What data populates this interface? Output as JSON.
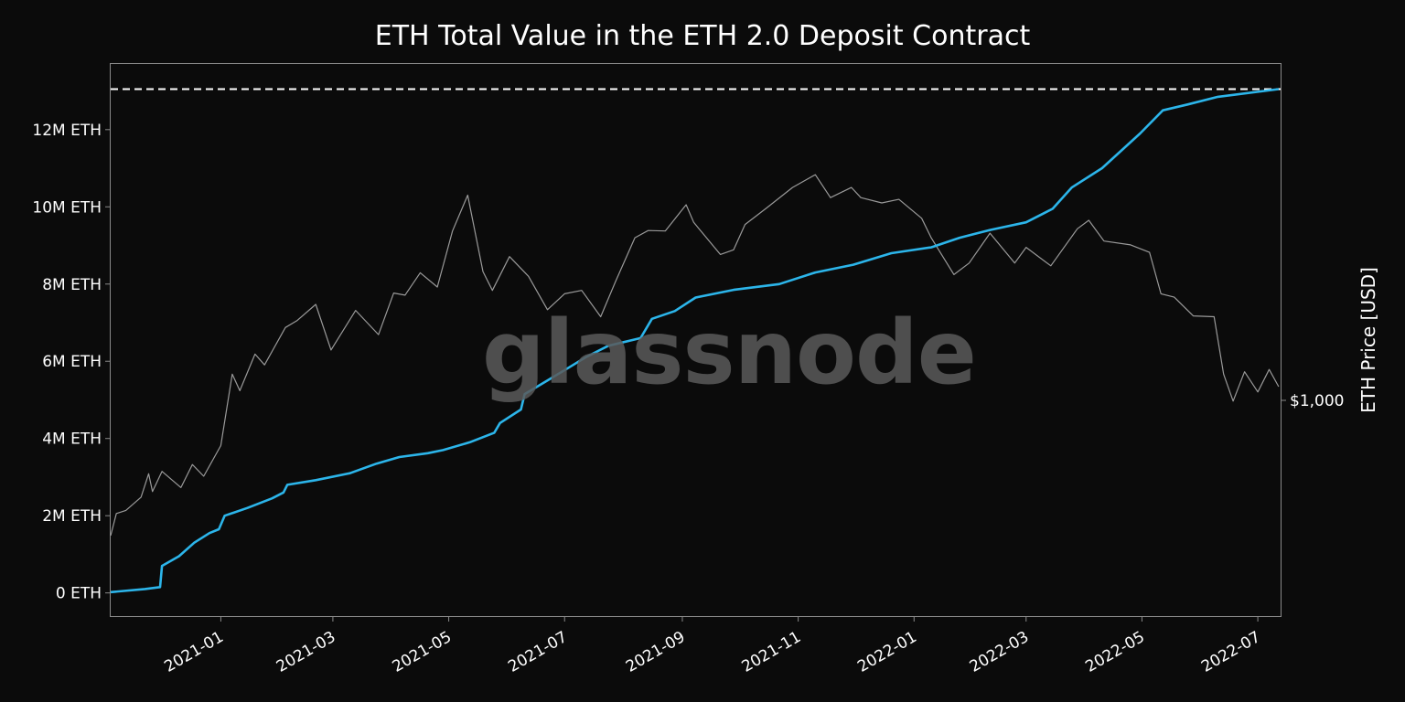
{
  "chart_data": {
    "type": "line",
    "title": "ETH Total Value in the ETH 2.0 Deposit Contract",
    "watermark": "glassnode",
    "x_range": [
      "2020-11-04",
      "2022-07-13"
    ],
    "x_ticks": [
      "2021-01",
      "2021-03",
      "2021-05",
      "2021-07",
      "2021-09",
      "2021-11",
      "2022-01",
      "2022-03",
      "2022-05",
      "2022-07"
    ],
    "left_axis": {
      "ylim": [
        -600000,
        13700000
      ],
      "ticks": [
        0,
        2000000,
        4000000,
        6000000,
        8000000,
        10000000,
        12000000
      ],
      "tick_labels": [
        "0 ETH",
        "2M ETH",
        "4M ETH",
        "6M ETH",
        "8M ETH",
        "10M ETH",
        "12M ETH"
      ]
    },
    "right_axis": {
      "label": "ETH Price [USD]",
      "scale": "log",
      "tick_labels": [
        "$1,000"
      ]
    },
    "reference_line": {
      "value": 13050000,
      "style": "dashed",
      "color": "#ffffff"
    },
    "series": [
      {
        "axis": "left",
        "color": "#2cb5ea",
        "points": [
          [
            "2020-11-04",
            20000
          ],
          [
            "2020-11-22",
            100000
          ],
          [
            "2020-11-30",
            150000
          ],
          [
            "2020-12-01",
            700000
          ],
          [
            "2020-12-10",
            950000
          ],
          [
            "2020-12-18",
            1300000
          ],
          [
            "2020-12-26",
            1550000
          ],
          [
            "2020-12-31",
            1650000
          ],
          [
            "2021-01-03",
            2000000
          ],
          [
            "2021-01-15",
            2200000
          ],
          [
            "2021-01-28",
            2450000
          ],
          [
            "2021-02-03",
            2600000
          ],
          [
            "2021-02-05",
            2800000
          ],
          [
            "2021-02-20",
            2920000
          ],
          [
            "2021-03-10",
            3100000
          ],
          [
            "2021-03-24",
            3350000
          ],
          [
            "2021-04-05",
            3520000
          ],
          [
            "2021-04-20",
            3620000
          ],
          [
            "2021-04-28",
            3700000
          ],
          [
            "2021-05-12",
            3900000
          ],
          [
            "2021-05-25",
            4150000
          ],
          [
            "2021-05-28",
            4400000
          ],
          [
            "2021-06-08",
            4750000
          ],
          [
            "2021-06-10",
            5150000
          ],
          [
            "2021-06-22",
            5500000
          ],
          [
            "2021-07-02",
            5800000
          ],
          [
            "2021-07-12",
            6100000
          ],
          [
            "2021-07-24",
            6400000
          ],
          [
            "2021-08-10",
            6600000
          ],
          [
            "2021-08-16",
            7100000
          ],
          [
            "2021-08-28",
            7300000
          ],
          [
            "2021-09-08",
            7650000
          ],
          [
            "2021-09-28",
            7850000
          ],
          [
            "2021-10-22",
            8000000
          ],
          [
            "2021-11-10",
            8300000
          ],
          [
            "2021-11-30",
            8500000
          ],
          [
            "2021-12-20",
            8800000
          ],
          [
            "2022-01-10",
            8950000
          ],
          [
            "2022-01-25",
            9200000
          ],
          [
            "2022-02-10",
            9400000
          ],
          [
            "2022-03-01",
            9600000
          ],
          [
            "2022-03-15",
            9950000
          ],
          [
            "2022-03-25",
            10500000
          ],
          [
            "2022-04-10",
            11000000
          ],
          [
            "2022-04-30",
            11900000
          ],
          [
            "2022-05-12",
            12500000
          ],
          [
            "2022-05-25",
            12650000
          ],
          [
            "2022-06-10",
            12850000
          ],
          [
            "2022-07-12",
            13050000
          ]
        ]
      },
      {
        "axis": "right",
        "color": "#9a9a9a",
        "points": [
          [
            "2020-11-04",
            390
          ],
          [
            "2020-11-07",
            455
          ],
          [
            "2020-11-12",
            465
          ],
          [
            "2020-11-20",
            510
          ],
          [
            "2020-11-24",
            600
          ],
          [
            "2020-11-26",
            530
          ],
          [
            "2020-12-01",
            610
          ],
          [
            "2020-12-11",
            545
          ],
          [
            "2020-12-17",
            640
          ],
          [
            "2020-12-23",
            590
          ],
          [
            "2021-01-01",
            730
          ],
          [
            "2021-01-07",
            1200
          ],
          [
            "2021-01-11",
            1070
          ],
          [
            "2021-01-19",
            1380
          ],
          [
            "2021-01-24",
            1280
          ],
          [
            "2021-02-04",
            1660
          ],
          [
            "2021-02-10",
            1740
          ],
          [
            "2021-02-20",
            1950
          ],
          [
            "2021-02-28",
            1420
          ],
          [
            "2021-03-13",
            1870
          ],
          [
            "2021-03-25",
            1580
          ],
          [
            "2021-04-02",
            2110
          ],
          [
            "2021-04-08",
            2080
          ],
          [
            "2021-04-16",
            2430
          ],
          [
            "2021-04-25",
            2200
          ],
          [
            "2021-05-03",
            3250
          ],
          [
            "2021-05-11",
            4170
          ],
          [
            "2021-05-19",
            2450
          ],
          [
            "2021-05-24",
            2150
          ],
          [
            "2021-06-02",
            2720
          ],
          [
            "2021-06-12",
            2370
          ],
          [
            "2021-06-22",
            1880
          ],
          [
            "2021-07-01",
            2100
          ],
          [
            "2021-07-10",
            2150
          ],
          [
            "2021-07-20",
            1790
          ],
          [
            "2021-07-28",
            2300
          ],
          [
            "2021-08-07",
            3100
          ],
          [
            "2021-08-14",
            3260
          ],
          [
            "2021-08-23",
            3250
          ],
          [
            "2021-09-03",
            3900
          ],
          [
            "2021-09-07",
            3450
          ],
          [
            "2021-09-21",
            2760
          ],
          [
            "2021-09-28",
            2850
          ],
          [
            "2021-10-04",
            3400
          ],
          [
            "2021-10-15",
            3800
          ],
          [
            "2021-10-29",
            4400
          ],
          [
            "2021-11-10",
            4810
          ],
          [
            "2021-11-18",
            4100
          ],
          [
            "2021-11-29",
            4400
          ],
          [
            "2021-12-04",
            4100
          ],
          [
            "2021-12-15",
            3950
          ],
          [
            "2021-12-24",
            4050
          ],
          [
            "2022-01-05",
            3550
          ],
          [
            "2022-01-10",
            3100
          ],
          [
            "2022-01-22",
            2400
          ],
          [
            "2022-01-30",
            2600
          ],
          [
            "2022-02-10",
            3200
          ],
          [
            "2022-02-23",
            2600
          ],
          [
            "2022-03-01",
            2900
          ],
          [
            "2022-03-14",
            2550
          ],
          [
            "2022-03-28",
            3300
          ],
          [
            "2022-04-03",
            3500
          ],
          [
            "2022-04-11",
            3030
          ],
          [
            "2022-04-25",
            2950
          ],
          [
            "2022-05-05",
            2800
          ],
          [
            "2022-05-11",
            2100
          ],
          [
            "2022-05-18",
            2050
          ],
          [
            "2022-05-28",
            1800
          ],
          [
            "2022-06-08",
            1790
          ],
          [
            "2022-06-13",
            1200
          ],
          [
            "2022-06-18",
            995
          ],
          [
            "2022-06-24",
            1220
          ],
          [
            "2022-07-01",
            1060
          ],
          [
            "2022-07-07",
            1240
          ],
          [
            "2022-07-12",
            1100
          ]
        ]
      }
    ]
  }
}
